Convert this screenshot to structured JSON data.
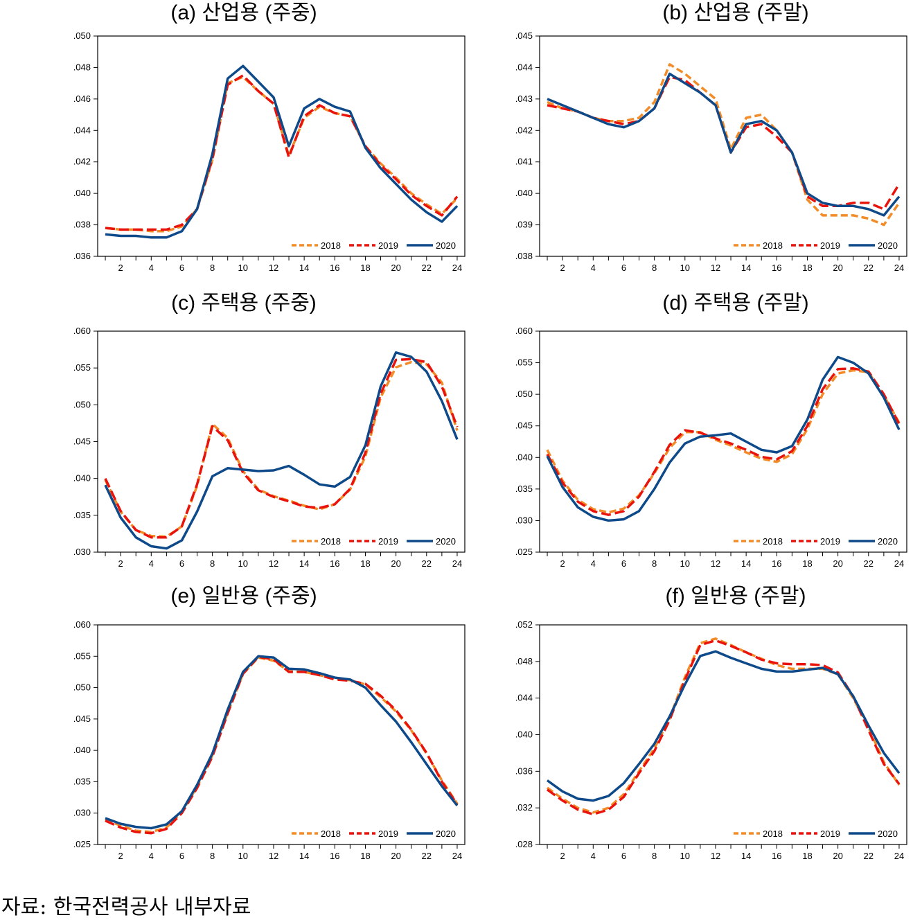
{
  "source_note": "자료: 한국전력공사 내부자료",
  "colors": {
    "2018": "#f28c28",
    "2019": "#e8140c",
    "2020": "#0e4a8a"
  },
  "chart_data": [
    {
      "type": "line",
      "title": "(a) 산업용 (주중)",
      "xlabel": "",
      "ylabel": "",
      "x": [
        1,
        2,
        3,
        4,
        5,
        6,
        7,
        8,
        9,
        10,
        11,
        12,
        13,
        14,
        15,
        16,
        17,
        18,
        19,
        20,
        21,
        22,
        23,
        24
      ],
      "xticks": [
        2,
        4,
        6,
        8,
        10,
        12,
        14,
        16,
        18,
        20,
        22,
        24
      ],
      "ylim": [
        0.036,
        0.05
      ],
      "yticks": [
        ".036",
        ".038",
        ".040",
        ".042",
        ".044",
        ".046",
        ".048",
        ".050"
      ],
      "grid": false,
      "legend": "bottom-right",
      "series": [
        {
          "name": "2018",
          "values": [
            0.0378,
            0.0377,
            0.0377,
            0.0376,
            0.0376,
            0.0379,
            0.039,
            0.0421,
            0.047,
            0.0474,
            0.0465,
            0.0457,
            0.0424,
            0.0448,
            0.0455,
            0.0451,
            0.0449,
            0.043,
            0.0419,
            0.041,
            0.04,
            0.0393,
            0.0387,
            0.0397
          ]
        },
        {
          "name": "2019",
          "values": [
            0.0378,
            0.0377,
            0.0377,
            0.0377,
            0.0377,
            0.038,
            0.039,
            0.0422,
            0.0469,
            0.0475,
            0.0465,
            0.0457,
            0.0423,
            0.0449,
            0.0456,
            0.0451,
            0.0449,
            0.043,
            0.0418,
            0.0409,
            0.0399,
            0.0392,
            0.0386,
            0.0398
          ]
        },
        {
          "name": "2020",
          "values": [
            0.0374,
            0.0373,
            0.0373,
            0.0372,
            0.0372,
            0.0376,
            0.039,
            0.0425,
            0.0473,
            0.0481,
            0.0471,
            0.0461,
            0.043,
            0.0454,
            0.046,
            0.0455,
            0.0452,
            0.0429,
            0.0416,
            0.0406,
            0.0396,
            0.0388,
            0.0382,
            0.0392
          ]
        }
      ]
    },
    {
      "type": "line",
      "title": "(b) 산업용 (주말)",
      "xlabel": "",
      "ylabel": "",
      "x": [
        1,
        2,
        3,
        4,
        5,
        6,
        7,
        8,
        9,
        10,
        11,
        12,
        13,
        14,
        15,
        16,
        17,
        18,
        19,
        20,
        21,
        22,
        23,
        24
      ],
      "xticks": [
        2,
        4,
        6,
        8,
        10,
        12,
        14,
        16,
        18,
        20,
        22,
        24
      ],
      "ylim": [
        0.038,
        0.045
      ],
      "yticks": [
        ".038",
        ".039",
        ".040",
        ".041",
        ".042",
        ".043",
        ".044",
        ".045"
      ],
      "grid": false,
      "legend": "bottom-right",
      "series": [
        {
          "name": "2018",
          "values": [
            0.0429,
            0.0427,
            0.0426,
            0.0424,
            0.0423,
            0.0423,
            0.0424,
            0.0429,
            0.0441,
            0.0438,
            0.0434,
            0.043,
            0.0414,
            0.0424,
            0.0425,
            0.042,
            0.0413,
            0.0398,
            0.0393,
            0.0393,
            0.0393,
            0.0392,
            0.039,
            0.0397
          ]
        },
        {
          "name": "2019",
          "values": [
            0.0428,
            0.0427,
            0.0426,
            0.0424,
            0.0423,
            0.0422,
            0.0423,
            0.0427,
            0.0437,
            0.0436,
            0.0432,
            0.0428,
            0.0413,
            0.0421,
            0.0422,
            0.0418,
            0.0413,
            0.0399,
            0.0396,
            0.0396,
            0.0397,
            0.0397,
            0.0395,
            0.0403
          ]
        },
        {
          "name": "2020",
          "values": [
            0.043,
            0.0428,
            0.0426,
            0.0424,
            0.0422,
            0.0421,
            0.0423,
            0.0427,
            0.0438,
            0.0435,
            0.0432,
            0.0428,
            0.0413,
            0.0422,
            0.0423,
            0.042,
            0.0413,
            0.04,
            0.0397,
            0.0396,
            0.0396,
            0.0395,
            0.0393,
            0.0399
          ]
        }
      ]
    },
    {
      "type": "line",
      "title": "(c) 주택용 (주중)",
      "xlabel": "",
      "ylabel": "",
      "x": [
        1,
        2,
        3,
        4,
        5,
        6,
        7,
        8,
        9,
        10,
        11,
        12,
        13,
        14,
        15,
        16,
        17,
        18,
        19,
        20,
        21,
        22,
        23,
        24
      ],
      "xticks": [
        2,
        4,
        6,
        8,
        10,
        12,
        14,
        16,
        18,
        20,
        22,
        24
      ],
      "ylim": [
        0.03,
        0.06
      ],
      "yticks": [
        ".030",
        ".035",
        ".040",
        ".045",
        ".050",
        ".055",
        ".060"
      ],
      "grid": false,
      "legend": "bottom-right",
      "series": [
        {
          "name": "2018",
          "values": [
            0.0398,
            0.0355,
            0.033,
            0.0322,
            0.0321,
            0.0335,
            0.039,
            0.0474,
            0.0455,
            0.041,
            0.0385,
            0.0376,
            0.037,
            0.0363,
            0.0358,
            0.0365,
            0.0385,
            0.043,
            0.051,
            0.0551,
            0.0558,
            0.0555,
            0.053,
            0.0465
          ]
        },
        {
          "name": "2019",
          "values": [
            0.04,
            0.0356,
            0.033,
            0.032,
            0.032,
            0.0335,
            0.0392,
            0.0471,
            0.0452,
            0.0408,
            0.0384,
            0.0375,
            0.0369,
            0.0362,
            0.036,
            0.0365,
            0.0386,
            0.0435,
            0.0515,
            0.0561,
            0.0562,
            0.0558,
            0.0525,
            0.047
          ]
        },
        {
          "name": "2020",
          "values": [
            0.0391,
            0.0347,
            0.032,
            0.0308,
            0.0305,
            0.0316,
            0.0355,
            0.0403,
            0.0414,
            0.0412,
            0.041,
            0.0411,
            0.0417,
            0.0405,
            0.0392,
            0.0389,
            0.0402,
            0.0445,
            0.0525,
            0.0571,
            0.0565,
            0.0545,
            0.0505,
            0.0453
          ]
        }
      ]
    },
    {
      "type": "line",
      "title": "(d) 주택용 (주말)",
      "xlabel": "",
      "ylabel": "",
      "x": [
        1,
        2,
        3,
        4,
        5,
        6,
        7,
        8,
        9,
        10,
        11,
        12,
        13,
        14,
        15,
        16,
        17,
        18,
        19,
        20,
        21,
        22,
        23,
        24
      ],
      "xticks": [
        2,
        4,
        6,
        8,
        10,
        12,
        14,
        16,
        18,
        20,
        22,
        24
      ],
      "ylim": [
        0.025,
        0.06
      ],
      "yticks": [
        ".025",
        ".030",
        ".035",
        ".040",
        ".045",
        ".050",
        ".055",
        ".060"
      ],
      "grid": false,
      "legend": "bottom-right",
      "series": [
        {
          "name": "2018",
          "values": [
            0.0412,
            0.0363,
            0.0333,
            0.0318,
            0.0313,
            0.0319,
            0.034,
            0.0375,
            0.0415,
            0.044,
            0.044,
            0.0428,
            0.0419,
            0.0408,
            0.0398,
            0.0393,
            0.0405,
            0.0445,
            0.05,
            0.0533,
            0.0538,
            0.0535,
            0.0498,
            0.0455
          ]
        },
        {
          "name": "2019",
          "values": [
            0.0405,
            0.036,
            0.033,
            0.0315,
            0.0309,
            0.0315,
            0.0338,
            0.0377,
            0.042,
            0.0443,
            0.0439,
            0.043,
            0.0422,
            0.0412,
            0.0401,
            0.0397,
            0.041,
            0.045,
            0.0508,
            0.054,
            0.0541,
            0.0536,
            0.05,
            0.0453
          ]
        },
        {
          "name": "2020",
          "values": [
            0.0402,
            0.0353,
            0.0321,
            0.0306,
            0.03,
            0.0302,
            0.0315,
            0.035,
            0.0392,
            0.0422,
            0.0433,
            0.0435,
            0.0438,
            0.0425,
            0.0412,
            0.0408,
            0.0418,
            0.046,
            0.0523,
            0.0559,
            0.055,
            0.0533,
            0.0495,
            0.0444
          ]
        }
      ]
    },
    {
      "type": "line",
      "title": "(e) 일반용 (주중)",
      "xlabel": "",
      "ylabel": "",
      "x": [
        1,
        2,
        3,
        4,
        5,
        6,
        7,
        8,
        9,
        10,
        11,
        12,
        13,
        14,
        15,
        16,
        17,
        18,
        19,
        20,
        21,
        22,
        23,
        24
      ],
      "xticks": [
        2,
        4,
        6,
        8,
        10,
        12,
        14,
        16,
        18,
        20,
        22,
        24
      ],
      "ylim": [
        0.025,
        0.06
      ],
      "yticks": [
        ".025",
        ".030",
        ".035",
        ".040",
        ".045",
        ".050",
        ".055",
        ".060"
      ],
      "grid": false,
      "legend": "bottom-right",
      "series": [
        {
          "name": "2018",
          "values": [
            0.029,
            0.028,
            0.0272,
            0.027,
            0.0277,
            0.0302,
            0.0342,
            0.0392,
            0.046,
            0.0522,
            0.0548,
            0.0543,
            0.0526,
            0.0525,
            0.052,
            0.0514,
            0.0512,
            0.0505,
            0.0485,
            0.0462,
            0.0432,
            0.0395,
            0.0352,
            0.0315
          ]
        },
        {
          "name": "2019",
          "values": [
            0.0288,
            0.0277,
            0.027,
            0.0268,
            0.0275,
            0.03,
            0.034,
            0.039,
            0.0459,
            0.0522,
            0.0549,
            0.0545,
            0.0525,
            0.0525,
            0.052,
            0.0513,
            0.0511,
            0.0506,
            0.0487,
            0.0464,
            0.0433,
            0.0396,
            0.035,
            0.0314
          ]
        },
        {
          "name": "2020",
          "values": [
            0.0292,
            0.0283,
            0.0278,
            0.0276,
            0.0282,
            0.0303,
            0.0345,
            0.0395,
            0.0465,
            0.0525,
            0.055,
            0.0548,
            0.053,
            0.0529,
            0.0523,
            0.0516,
            0.0513,
            0.05,
            0.0472,
            0.0446,
            0.0413,
            0.0378,
            0.0343,
            0.0312
          ]
        }
      ]
    },
    {
      "type": "line",
      "title": "(f) 일반용 (주말)",
      "xlabel": "",
      "ylabel": "",
      "x": [
        1,
        2,
        3,
        4,
        5,
        6,
        7,
        8,
        9,
        10,
        11,
        12,
        13,
        14,
        15,
        16,
        17,
        18,
        19,
        20,
        21,
        22,
        23,
        24
      ],
      "xticks": [
        2,
        4,
        6,
        8,
        10,
        12,
        14,
        16,
        18,
        20,
        22,
        24
      ],
      "ylim": [
        0.028,
        0.052
      ],
      "yticks": [
        ".028",
        ".032",
        ".036",
        ".040",
        ".044",
        ".048",
        ".052"
      ],
      "grid": false,
      "legend": "bottom-right",
      "series": [
        {
          "name": "2018",
          "values": [
            0.0342,
            0.033,
            0.032,
            0.0315,
            0.032,
            0.0335,
            0.036,
            0.0385,
            0.0418,
            0.0463,
            0.05,
            0.0505,
            0.0498,
            0.049,
            0.0483,
            0.0476,
            0.0472,
            0.0472,
            0.0472,
            0.0466,
            0.044,
            0.0408,
            0.037,
            0.0345
          ]
        },
        {
          "name": "2019",
          "values": [
            0.034,
            0.0328,
            0.0318,
            0.0313,
            0.0318,
            0.0332,
            0.0358,
            0.0382,
            0.0416,
            0.046,
            0.0498,
            0.0503,
            0.0497,
            0.049,
            0.0482,
            0.0478,
            0.0477,
            0.0477,
            0.0476,
            0.0468,
            0.0442,
            0.0405,
            0.0368,
            0.0346
          ]
        },
        {
          "name": "2020",
          "values": [
            0.035,
            0.0338,
            0.033,
            0.0328,
            0.0333,
            0.0347,
            0.0368,
            0.039,
            0.042,
            0.0455,
            0.0486,
            0.0491,
            0.0484,
            0.0478,
            0.0472,
            0.0469,
            0.0469,
            0.0471,
            0.0473,
            0.0466,
            0.0442,
            0.041,
            0.038,
            0.0358
          ]
        }
      ]
    }
  ]
}
